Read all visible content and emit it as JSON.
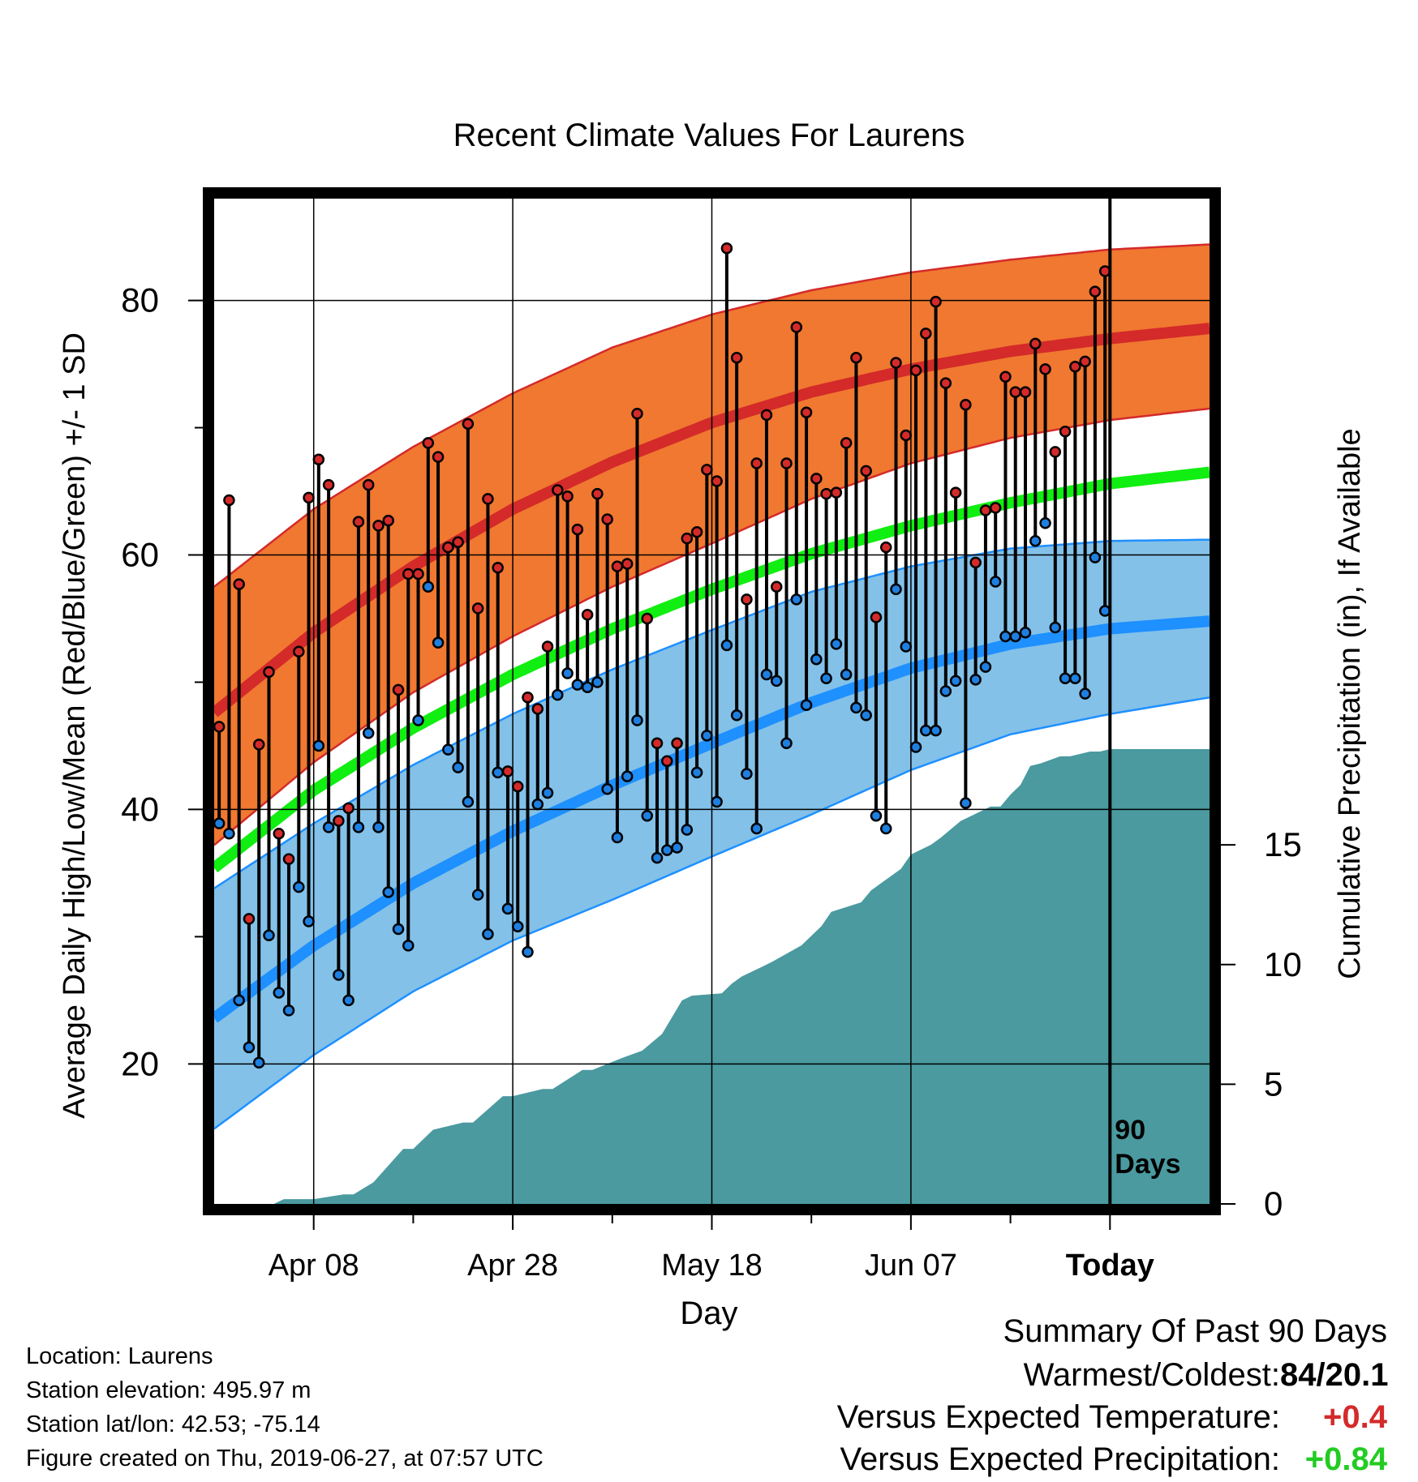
{
  "chart_data": {
    "type": "line",
    "title": "Recent Climate Values For Laurens",
    "xlabel": "Day",
    "ylabel": "Average Daily High/Low/Mean (Red/Blue/Green) +/- 1 SD",
    "y2label": "Cumulative Precipitation (in), If Available",
    "x_ticks": [
      "Apr 08",
      "Apr 28",
      "May 18",
      "Jun 07",
      "Today"
    ],
    "y_ticks": [
      20,
      40,
      60,
      80
    ],
    "y2_ticks": [
      0,
      5,
      10,
      15
    ],
    "ylim": [
      9,
      88
    ],
    "y2lim": [
      0,
      42
    ],
    "xlim_days": [
      -90,
      10
    ],
    "today_marker_label": [
      "90",
      "Days"
    ],
    "x_days": [
      -90,
      -89,
      -88,
      -87,
      -86,
      -85,
      -84,
      -83,
      -82,
      -81,
      -80,
      -79,
      -78,
      -77,
      -76,
      -75,
      -74,
      -73,
      -72,
      -71,
      -70,
      -69,
      -68,
      -67,
      -66,
      -65,
      -64,
      -63,
      -62,
      -61,
      -60,
      -59,
      -58,
      -57,
      -56,
      -55,
      -54,
      -53,
      -52,
      -51,
      -50,
      -49,
      -48,
      -47,
      -46,
      -45,
      -44,
      -43,
      -42,
      -41,
      -40,
      -39,
      -38,
      -37,
      -36,
      -35,
      -34,
      -33,
      -32,
      -31,
      -30,
      -29,
      -28,
      -27,
      -26,
      -25,
      -24,
      -23,
      -22,
      -21,
      -20,
      -19,
      -18,
      -17,
      -16,
      -15,
      -14,
      -13,
      -12,
      -11,
      -10,
      -9,
      -8,
      -7,
      -6,
      -5,
      -4,
      -3,
      -2,
      -1
    ],
    "highs": [
      46.5,
      64.3,
      57.7,
      31.4,
      45.1,
      50.8,
      38.1,
      36.1,
      52.4,
      64.5,
      67.5,
      65.5,
      39.1,
      40.1,
      62.6,
      65.5,
      62.3,
      62.7,
      49.4,
      58.5,
      58.5,
      68.8,
      67.7,
      60.6,
      61,
      70.3,
      55.8,
      64.4,
      59,
      43,
      41.8,
      48.8,
      47.9,
      52.8,
      65.1,
      64.6,
      62,
      55.3,
      64.8,
      62.8,
      59.1,
      59.3,
      71.1,
      55,
      45.2,
      43.8,
      45.2,
      61.3,
      61.8,
      66.7,
      65.8,
      84.1,
      75.5,
      56.5,
      67.2,
      71,
      57.5,
      67.2,
      77.9,
      71.2,
      66,
      64.8,
      64.9,
      68.8,
      75.5,
      66.6,
      55.1,
      60.6,
      75.1,
      69.4,
      74.5,
      77.4,
      79.9,
      73.5,
      64.9,
      71.8,
      59.4,
      63.5,
      63.7,
      74,
      72.8,
      72.8,
      76.6,
      74.6,
      68.1,
      69.7,
      74.8,
      75.2,
      80.7,
      82.3
    ],
    "lows": [
      38.9,
      38.1,
      25,
      21.3,
      20.1,
      30.1,
      25.6,
      24.2,
      33.9,
      31.2,
      45,
      38.6,
      27,
      25,
      38.6,
      46,
      38.6,
      33.5,
      30.6,
      29.3,
      47,
      57.5,
      53.1,
      44.7,
      43.3,
      40.6,
      33.3,
      30.2,
      42.9,
      32.2,
      30.8,
      28.8,
      40.4,
      41.3,
      49,
      50.7,
      49.8,
      49.6,
      50,
      41.6,
      37.8,
      42.6,
      47,
      39.5,
      36.2,
      36.8,
      37,
      38.4,
      42.9,
      45.8,
      40.6,
      52.9,
      47.4,
      42.8,
      38.5,
      50.6,
      50.1,
      45.2,
      56.5,
      48.2,
      51.8,
      50.3,
      53,
      50.6,
      48,
      47.4,
      39.5,
      38.5,
      57.3,
      52.8,
      44.9,
      46.2,
      46.2,
      49.3,
      50.1,
      40.5,
      50.2,
      51.2,
      57.9,
      53.6,
      53.6,
      53.9,
      61.1,
      62.5,
      54.3,
      50.3,
      50.3,
      49.1,
      59.8,
      55.6
    ],
    "normal_high": {
      "x_days": [
        -90,
        -80,
        -70,
        -60,
        -50,
        -40,
        -30,
        -20,
        -10,
        0,
        10
      ],
      "mean": [
        47.6,
        53.9,
        59.1,
        63.6,
        67.3,
        70.4,
        72.8,
        74.6,
        76,
        77,
        77.8
      ],
      "upper": [
        57.5,
        63.6,
        68.5,
        72.7,
        76.3,
        78.9,
        80.8,
        82.2,
        83.2,
        84,
        84.4
      ],
      "lower": [
        37.2,
        43.7,
        49.2,
        53.6,
        57.5,
        60.9,
        64.4,
        67.2,
        69.2,
        70.6,
        71.5
      ]
    },
    "normal_mean": {
      "x_days": [
        -90,
        -80,
        -70,
        -60,
        -50,
        -40,
        -30,
        -20,
        -10,
        0,
        10
      ],
      "mean": [
        35.4,
        41.5,
        46.4,
        50.6,
        54.2,
        57.3,
        60.1,
        62.3,
        64.1,
        65.6,
        66.5
      ]
    },
    "normal_low": {
      "x_days": [
        -90,
        -80,
        -70,
        -60,
        -50,
        -40,
        -30,
        -20,
        -10,
        0,
        10
      ],
      "mean": [
        23.6,
        29.3,
        34.2,
        38.3,
        41.9,
        45.2,
        48.4,
        51.1,
        53,
        54.2,
        54.8
      ],
      "upper": [
        33.8,
        38.9,
        43.5,
        47.5,
        51,
        54.1,
        57.1,
        59.1,
        60.5,
        61.1,
        61.2
      ],
      "lower": [
        14.9,
        20.7,
        25.7,
        29.7,
        32.9,
        36.3,
        39.6,
        43.1,
        45.9,
        47.5,
        48.8
      ]
    },
    "precip_cumulative": {
      "x_days": [
        -90,
        -84,
        -83,
        -80,
        -77,
        -76,
        -74,
        -71,
        -70,
        -68,
        -65,
        -64,
        -61,
        -60,
        -57,
        -56,
        -53,
        -52,
        -49,
        -47,
        -45,
        -43,
        -42,
        -39,
        -38,
        -37,
        -35,
        -34,
        -31,
        -29,
        -28,
        -25,
        -24,
        -21,
        -20,
        -18,
        -17,
        -15,
        -12,
        -11,
        -10,
        -9,
        -8,
        -7,
        -5,
        -4,
        -2,
        -1,
        0,
        10
      ],
      "values": [
        0,
        0,
        0.2,
        0.2,
        0.4,
        0.4,
        0.9,
        2.3,
        2.3,
        3.1,
        3.4,
        3.4,
        4.5,
        4.5,
        4.8,
        4.8,
        5.6,
        5.6,
        6.1,
        6.4,
        7.1,
        8.5,
        8.7,
        8.8,
        9.2,
        9.5,
        9.9,
        10.1,
        10.8,
        11.6,
        12.2,
        12.6,
        13.1,
        14,
        14.6,
        15,
        15.3,
        16,
        16.6,
        16.6,
        17.1,
        17.5,
        18.3,
        18.4,
        18.7,
        18.7,
        18.9,
        18.9,
        19,
        19
      ]
    }
  },
  "footer": {
    "location": "Location: Laurens",
    "elevation": "Station elevation: 495.97 m",
    "latlon": "Station lat/lon: 42.53; -75.14",
    "created": "Figure created on Thu, 2019-06-27, at 07:57 UTC"
  },
  "summary": {
    "heading": "Summary Of Past 90 Days",
    "warmest_label": "Warmest/Coldest:",
    "warmest_value": "84/20.1",
    "temp_label": "Versus Expected Temperature:",
    "temp_value": "+0.4",
    "precip_label": "Versus Expected Precipitation:",
    "precip_value": "+0.84"
  },
  "colors": {
    "high_band": "#f07830",
    "high_mean": "#d42a2a",
    "mean_line": "#11ee11",
    "low_band": "#83c1e8",
    "low_mean": "#1e90ff",
    "precip": "#4a9aa0",
    "high_dot": "#d42a2a",
    "low_dot": "#1e7fe0"
  }
}
